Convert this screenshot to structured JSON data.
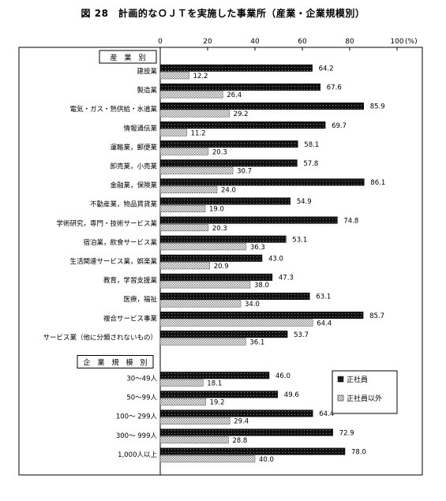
{
  "title": "図 28　計画的なＯＪＴを実施した事業所（産業・企業規模別）",
  "chart_data": {
    "type": "bar",
    "orientation": "horizontal",
    "xlim": [
      0,
      100
    ],
    "xticks": [
      "0",
      "20",
      "40",
      "60",
      "80",
      "100"
    ],
    "x_unit": "(%)",
    "grid": false,
    "legend_position": "right",
    "series": [
      {
        "name": "正社員",
        "color": "#111111",
        "pattern": "dark-dotted"
      },
      {
        "name": "正社員以外",
        "color": "#d8d8d8",
        "pattern": "light-hatched"
      }
    ],
    "groups": [
      {
        "header": "産　業　別",
        "categories": [
          {
            "label": "建設業",
            "values": [
              64.2,
              12.2
            ],
            "labels": [
              "64.2",
              "12.2"
            ]
          },
          {
            "label": "製造業",
            "values": [
              67.6,
              26.4
            ],
            "labels": [
              "67.6",
              "26.4"
            ]
          },
          {
            "label": "電気・ガス・熱供給・水道業",
            "values": [
              85.9,
              29.2
            ],
            "labels": [
              "85.9",
              "29.2"
            ]
          },
          {
            "label": "情報通信業",
            "values": [
              69.7,
              11.2
            ],
            "labels": [
              "69.7",
              "11.2"
            ]
          },
          {
            "label": "運輸業，郵便業",
            "values": [
              58.1,
              20.3
            ],
            "labels": [
              "58.1",
              "20.3"
            ]
          },
          {
            "label": "卸売業，小売業",
            "values": [
              57.8,
              30.7
            ],
            "labels": [
              "57.8",
              "30.7"
            ]
          },
          {
            "label": "金融業，保険業",
            "values": [
              86.1,
              24.0
            ],
            "labels": [
              "86.1",
              "24.0"
            ]
          },
          {
            "label": "不動産業，物品賃貸業",
            "values": [
              54.9,
              19.0
            ],
            "labels": [
              "54.9",
              "19.0"
            ]
          },
          {
            "label": "学術研究，専門・技術サービス業",
            "values": [
              74.8,
              20.3
            ],
            "labels": [
              "74.8",
              "20.3"
            ]
          },
          {
            "label": "宿泊業，飲食サービス業",
            "values": [
              53.1,
              36.3
            ],
            "labels": [
              "53.1",
              "36.3"
            ]
          },
          {
            "label": "生活関連サービス業，娯楽業",
            "values": [
              43.0,
              20.9
            ],
            "labels": [
              "43.0",
              "20.9"
            ]
          },
          {
            "label": "教育，学習支援業",
            "values": [
              47.3,
              38.0
            ],
            "labels": [
              "47.3",
              "38.0"
            ]
          },
          {
            "label": "医療，福祉",
            "values": [
              63.1,
              34.0
            ],
            "labels": [
              "63.1",
              "34.0"
            ]
          },
          {
            "label": "複合サービス事業",
            "values": [
              85.7,
              64.4
            ],
            "labels": [
              "85.7",
              "64.4"
            ]
          },
          {
            "label": "サービス業（他に分類されないもの）",
            "values": [
              53.7,
              36.1
            ],
            "labels": [
              "53.7",
              "36.1"
            ]
          }
        ]
      },
      {
        "header": "企　業　規　模　別",
        "categories": [
          {
            "label": "30～49人",
            "values": [
              46.0,
              18.1
            ],
            "labels": [
              "46.0",
              "18.1"
            ]
          },
          {
            "label": "50～99人",
            "values": [
              49.6,
              19.2
            ],
            "labels": [
              "49.6",
              "19.2"
            ]
          },
          {
            "label": "100～ 299人",
            "values": [
              64.4,
              29.4
            ],
            "labels": [
              "64.4",
              "29.4"
            ]
          },
          {
            "label": "300～ 999人",
            "values": [
              72.9,
              28.8
            ],
            "labels": [
              "72.9",
              "28.8"
            ]
          },
          {
            "label": "1,000人以上",
            "values": [
              78.0,
              40.0
            ],
            "labels": [
              "78.0",
              "40.0"
            ]
          }
        ]
      }
    ]
  }
}
